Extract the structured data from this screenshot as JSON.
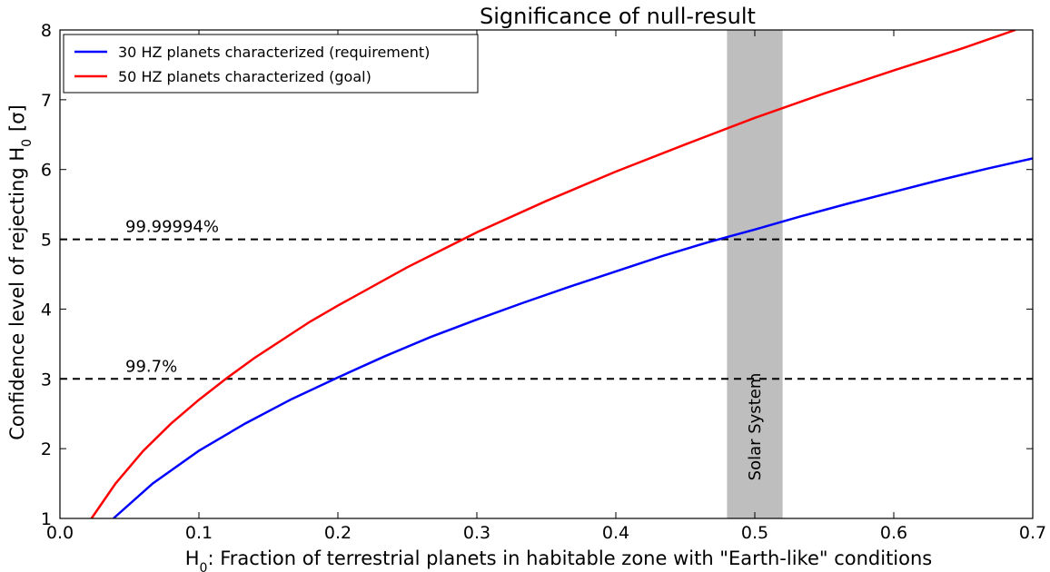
{
  "chart_data": {
    "type": "line",
    "title": "Significance of null-result",
    "xlabel": "H",
    "xlabel_sub": "0",
    "xlabel_rest": ": Fraction of terrestrial planets in habitable zone with \"Earth-like\" conditions",
    "ylabel": "Confidence level of rejecting H",
    "ylabel_sub": "0",
    "ylabel_unit": "[σ]",
    "xlim": [
      0.0,
      0.7
    ],
    "ylim": [
      1,
      8
    ],
    "x_ticks": [
      0.0,
      0.1,
      0.2,
      0.3,
      0.4,
      0.5,
      0.6,
      0.7
    ],
    "x_tick_labels": [
      "0.0",
      "0.1",
      "0.2",
      "0.3",
      "0.4",
      "0.5",
      "0.6",
      "0.7"
    ],
    "y_ticks": [
      1,
      2,
      3,
      4,
      5,
      6,
      7,
      8
    ],
    "y_tick_labels": [
      "1",
      "2",
      "3",
      "4",
      "5",
      "6",
      "7",
      "8"
    ],
    "grid": false,
    "legend_position": "top-left",
    "series": [
      {
        "name": "30 HZ planets characterized (requirement)",
        "color": "#0000ff",
        "x": [
          0.0385,
          0.0667,
          0.1,
          0.1333,
          0.1667,
          0.2,
          0.2333,
          0.2667,
          0.3,
          0.3333,
          0.3667,
          0.4,
          0.4333,
          0.4667,
          0.5,
          0.5333,
          0.5667,
          0.6,
          0.6333,
          0.6667,
          0.7
        ],
        "y": [
          1.0,
          1.5,
          1.97,
          2.36,
          2.71,
          3.02,
          3.32,
          3.6,
          3.85,
          4.09,
          4.32,
          4.54,
          4.76,
          4.96,
          5.14,
          5.33,
          5.51,
          5.68,
          5.85,
          6.01,
          6.16
        ]
      },
      {
        "name": "50 HZ planets characterized (goal)",
        "color": "#ff0000",
        "x": [
          0.0227,
          0.04,
          0.06,
          0.08,
          0.1,
          0.12,
          0.14,
          0.16,
          0.18,
          0.2,
          0.25,
          0.3,
          0.35,
          0.4,
          0.45,
          0.5,
          0.55,
          0.6,
          0.65,
          0.6875
        ],
        "y": [
          1.0,
          1.5,
          1.97,
          2.36,
          2.7,
          3.01,
          3.3,
          3.56,
          3.82,
          4.05,
          4.6,
          5.1,
          5.55,
          5.97,
          6.36,
          6.74,
          7.09,
          7.42,
          7.74,
          8.0
        ]
      }
    ],
    "reference_lines": [
      {
        "y": 5,
        "label": "99.99994%",
        "style": "dashed",
        "color": "#000000"
      },
      {
        "y": 3,
        "label": "99.7%",
        "style": "dashed",
        "color": "#000000"
      }
    ],
    "shaded_region": {
      "x": [
        0.48,
        0.52
      ],
      "label": "Solar System",
      "color": "#bebebe"
    }
  }
}
